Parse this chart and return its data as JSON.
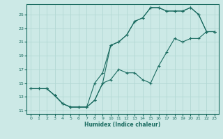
{
  "xlabel": "Humidex (Indice chaleur)",
  "xlim": [
    -0.5,
    23.5
  ],
  "ylim": [
    10.5,
    26.5
  ],
  "xticks": [
    0,
    1,
    2,
    3,
    4,
    5,
    6,
    7,
    8,
    9,
    10,
    11,
    12,
    13,
    14,
    15,
    16,
    17,
    18,
    19,
    20,
    21,
    22,
    23
  ],
  "yticks": [
    11,
    13,
    15,
    17,
    19,
    21,
    23,
    25
  ],
  "bg_color": "#cce9e6",
  "grid_color": "#b2d8d4",
  "line_color": "#1a6b60",
  "s1_x": [
    0,
    1,
    2,
    3,
    4,
    5,
    6,
    7,
    8,
    9,
    10,
    11,
    12,
    13,
    14,
    15,
    16,
    17,
    18,
    19,
    20,
    21,
    22,
    23
  ],
  "s1_y": [
    14.2,
    14.2,
    14.2,
    13.2,
    12.0,
    11.5,
    11.5,
    11.5,
    12.5,
    15.0,
    15.5,
    17.0,
    16.5,
    16.5,
    15.5,
    15.0,
    17.5,
    19.5,
    21.5,
    21.0,
    21.5,
    21.5,
    22.5,
    22.5
  ],
  "s2_x": [
    0,
    1,
    2,
    3,
    4,
    5,
    6,
    7,
    8,
    9,
    10,
    11,
    12,
    13,
    14,
    15,
    16,
    17,
    18,
    19,
    20,
    21,
    22,
    23
  ],
  "s2_y": [
    14.2,
    14.2,
    14.2,
    13.2,
    12.0,
    11.5,
    11.5,
    11.5,
    12.5,
    15.0,
    20.5,
    21.0,
    22.0,
    24.0,
    24.5,
    26.0,
    26.0,
    25.5,
    25.5,
    25.5,
    26.0,
    25.0,
    22.5,
    22.5
  ],
  "s3_x": [
    2,
    3,
    4,
    5,
    6,
    7,
    8,
    9,
    10,
    11,
    12,
    13,
    14,
    15,
    16,
    17,
    18,
    19,
    20,
    21,
    22,
    23
  ],
  "s3_y": [
    14.2,
    13.2,
    12.0,
    11.5,
    11.5,
    11.5,
    15.0,
    16.5,
    20.5,
    21.0,
    22.0,
    24.0,
    24.5,
    26.0,
    26.0,
    25.5,
    25.5,
    25.5,
    26.0,
    25.0,
    22.5,
    22.5
  ]
}
